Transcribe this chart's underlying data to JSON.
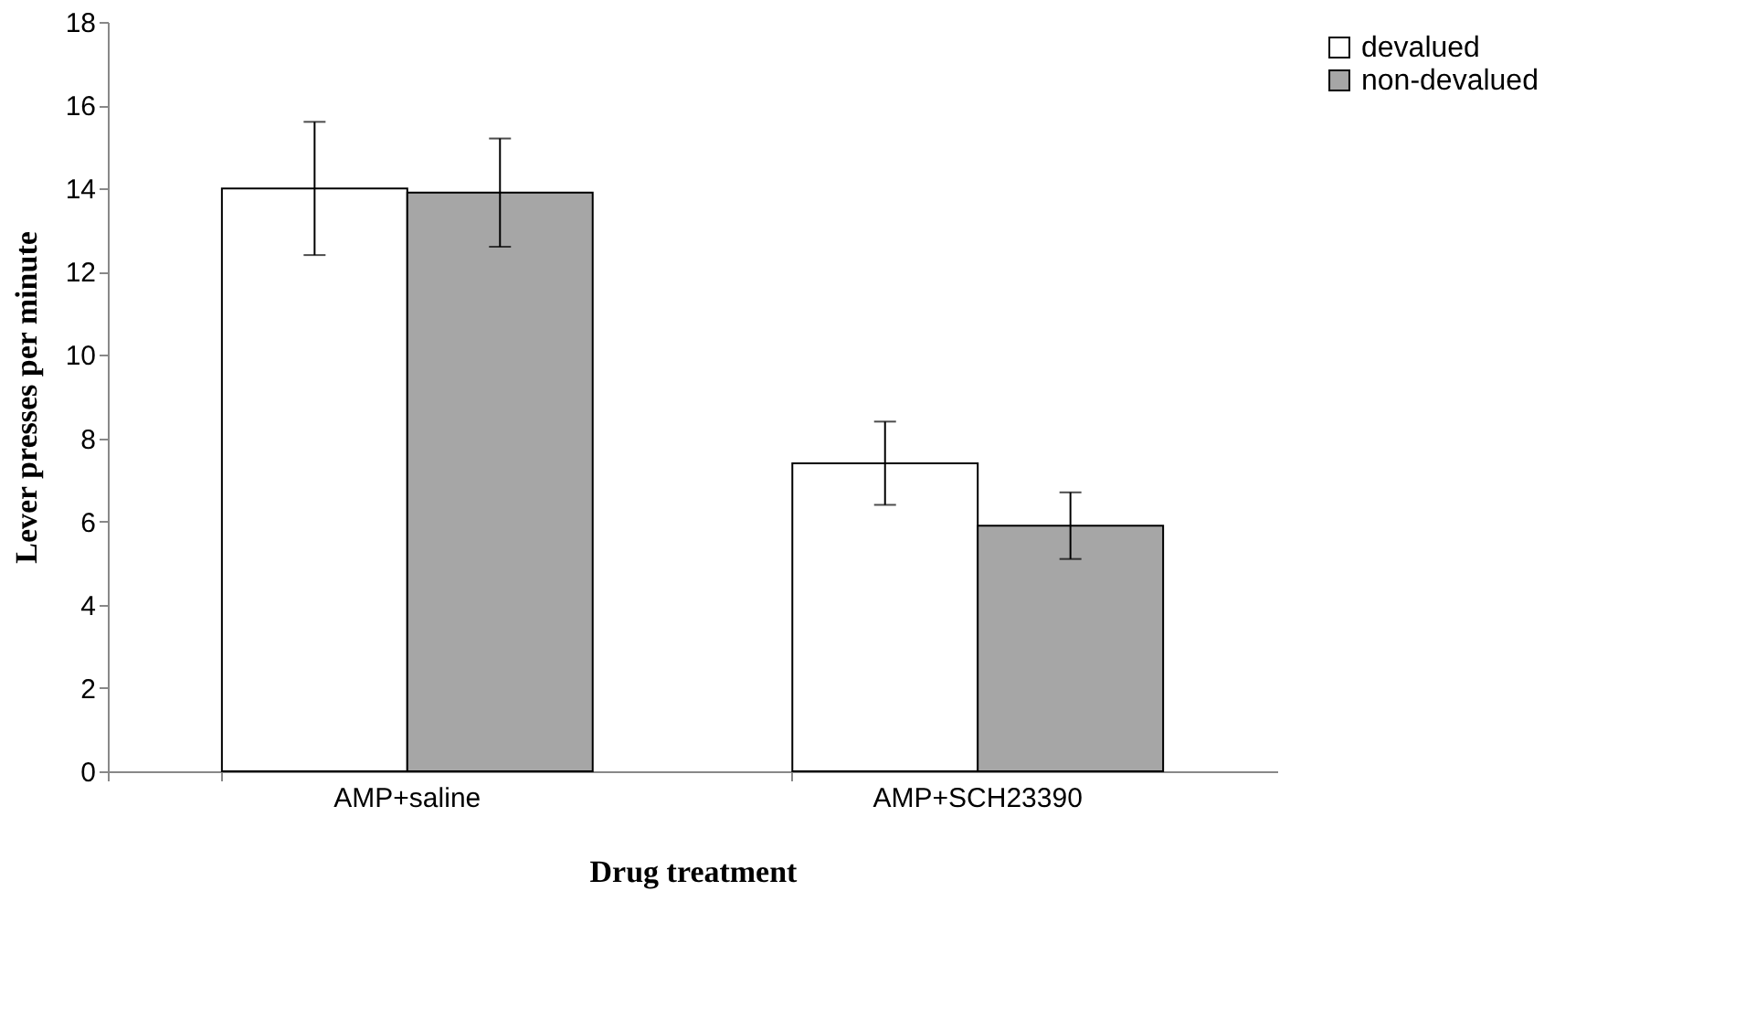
{
  "chart_data": {
    "type": "bar",
    "xlabel": "Drug treatment",
    "ylabel": "Lever presses per minute",
    "categories": [
      "AMP+saline",
      "AMP+SCH23390"
    ],
    "series": [
      {
        "name": "devalued",
        "color": "#ffffff",
        "values": [
          14.0,
          7.4
        ],
        "errors": [
          1.6,
          1.0
        ]
      },
      {
        "name": "non-devalued",
        "color": "#a6a6a6",
        "values": [
          13.9,
          5.9
        ],
        "errors": [
          1.3,
          0.8
        ]
      }
    ],
    "ylim": [
      0,
      18
    ],
    "yticks": [
      0,
      2,
      4,
      6,
      8,
      10,
      12,
      14,
      16,
      18
    ],
    "grid": false,
    "legend": "right"
  }
}
